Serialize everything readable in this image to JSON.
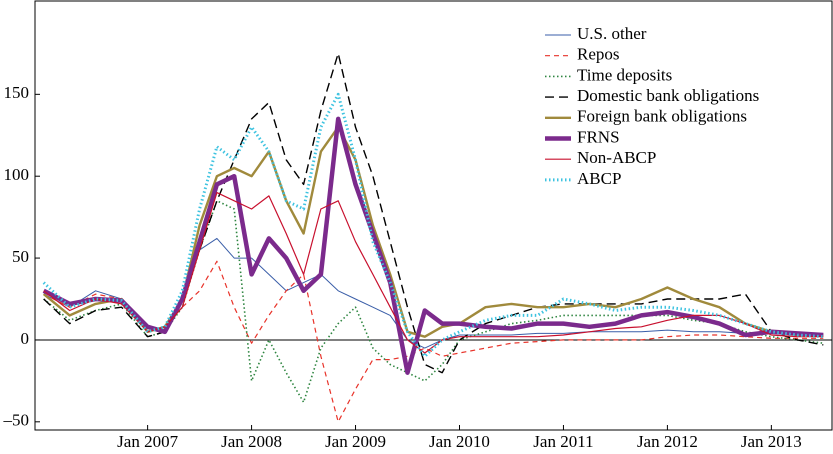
{
  "chart_data": {
    "type": "line",
    "x": [
      "2006-01",
      "2006-04",
      "2006-07",
      "2006-10",
      "2007-01",
      "2007-03",
      "2007-05",
      "2007-07",
      "2007-09",
      "2007-11",
      "2008-01",
      "2008-03",
      "2008-05",
      "2008-07",
      "2008-09",
      "2008-11",
      "2009-01",
      "2009-03",
      "2009-05",
      "2009-07",
      "2009-09",
      "2009-11",
      "2010-01",
      "2010-04",
      "2010-07",
      "2010-10",
      "2011-01",
      "2011-04",
      "2011-07",
      "2011-10",
      "2012-01",
      "2012-04",
      "2012-07",
      "2012-10",
      "2013-01",
      "2013-04",
      "2013-07"
    ],
    "xlim": [
      "2005-12",
      "2013-08"
    ],
    "xticks": [
      {
        "value": "2007-01",
        "label": "Jan 2007"
      },
      {
        "value": "2008-01",
        "label": "Jan 2008"
      },
      {
        "value": "2009-01",
        "label": "Jan 2009"
      },
      {
        "value": "2010-01",
        "label": "Jan 2010"
      },
      {
        "value": "2011-01",
        "label": "Jan 2011"
      },
      {
        "value": "2012-01",
        "label": "Jan 2012"
      },
      {
        "value": "2013-01",
        "label": "Jan 2013"
      }
    ],
    "ylim": [
      -55,
      207
    ],
    "yticks": [
      {
        "value": -50,
        "label": "–50"
      },
      0,
      50,
      100,
      150
    ],
    "legend": "upper right",
    "series": [
      {
        "name": "U.S. other",
        "color": "#3a5ea8",
        "width": 1,
        "dash": "solid",
        "values": [
          28,
          20,
          30,
          25,
          5,
          8,
          25,
          55,
          62,
          50,
          50,
          40,
          30,
          35,
          40,
          30,
          25,
          20,
          15,
          0,
          -5,
          0,
          3,
          3,
          3,
          4,
          4,
          5,
          5,
          5,
          6,
          5,
          5,
          4,
          4,
          3,
          3
        ]
      },
      {
        "name": "Repos",
        "color": "#e8332a",
        "width": 1.2,
        "dash": "dashed",
        "values": [
          28,
          20,
          28,
          25,
          5,
          8,
          20,
          30,
          48,
          20,
          -2,
          15,
          30,
          40,
          -10,
          -50,
          -30,
          -12,
          -12,
          -10,
          -5,
          -10,
          -8,
          -5,
          -2,
          -1,
          0,
          0,
          0,
          0,
          2,
          3,
          3,
          2,
          1,
          1,
          1
        ]
      },
      {
        "name": "Time deposits",
        "color": "#2e8540",
        "width": 1.6,
        "dash": "dotted",
        "values": [
          25,
          12,
          18,
          22,
          2,
          5,
          20,
          55,
          85,
          80,
          -25,
          0,
          -20,
          -38,
          -5,
          10,
          20,
          -5,
          -15,
          -20,
          -25,
          -15,
          0,
          5,
          10,
          12,
          15,
          15,
          15,
          15,
          15,
          12,
          10,
          5,
          2,
          0,
          -2
        ]
      },
      {
        "name": "Domestic bank obligations",
        "color": "#000000",
        "width": 1.4,
        "dash": "longdash",
        "values": [
          25,
          10,
          18,
          20,
          2,
          5,
          25,
          55,
          85,
          110,
          135,
          145,
          110,
          95,
          140,
          175,
          130,
          100,
          60,
          20,
          -15,
          -20,
          0,
          10,
          15,
          20,
          22,
          22,
          22,
          22,
          25,
          25,
          25,
          28,
          5,
          0,
          -3
        ]
      },
      {
        "name": "Foreign bank obligations",
        "color": "#a08a3c",
        "width": 2.4,
        "dash": "solid",
        "values": [
          28,
          15,
          22,
          25,
          5,
          8,
          25,
          70,
          100,
          105,
          100,
          115,
          85,
          65,
          115,
          130,
          110,
          70,
          40,
          5,
          2,
          8,
          10,
          20,
          22,
          20,
          20,
          22,
          20,
          25,
          32,
          25,
          20,
          10,
          5,
          3,
          3
        ]
      },
      {
        "name": "FRNS",
        "color": "#7b2a8c",
        "width": 4.5,
        "dash": "solid",
        "values": [
          30,
          22,
          25,
          24,
          8,
          5,
          25,
          60,
          95,
          100,
          40,
          62,
          50,
          30,
          40,
          135,
          95,
          65,
          35,
          -20,
          18,
          10,
          10,
          8,
          7,
          10,
          10,
          8,
          10,
          15,
          17,
          14,
          10,
          3,
          5,
          4,
          3
        ]
      },
      {
        "name": "Non-ABCP",
        "color": "#c8102e",
        "width": 1.2,
        "dash": "solid",
        "dash2": "none",
        "values": [
          30,
          18,
          25,
          22,
          5,
          8,
          20,
          55,
          90,
          85,
          80,
          88,
          65,
          40,
          80,
          85,
          60,
          40,
          20,
          0,
          -8,
          0,
          2,
          2,
          2,
          2,
          3,
          5,
          7,
          8,
          12,
          15,
          15,
          10,
          3,
          2,
          2
        ]
      },
      {
        "name": "ABCP",
        "color": "#3ec3e0",
        "width": 3,
        "dash": "dotted",
        "values": [
          35,
          20,
          25,
          24,
          5,
          8,
          30,
          80,
          118,
          110,
          130,
          115,
          85,
          80,
          130,
          150,
          110,
          60,
          35,
          5,
          -10,
          0,
          5,
          12,
          15,
          15,
          25,
          22,
          18,
          20,
          20,
          18,
          15,
          10,
          5,
          3,
          2
        ]
      }
    ]
  }
}
